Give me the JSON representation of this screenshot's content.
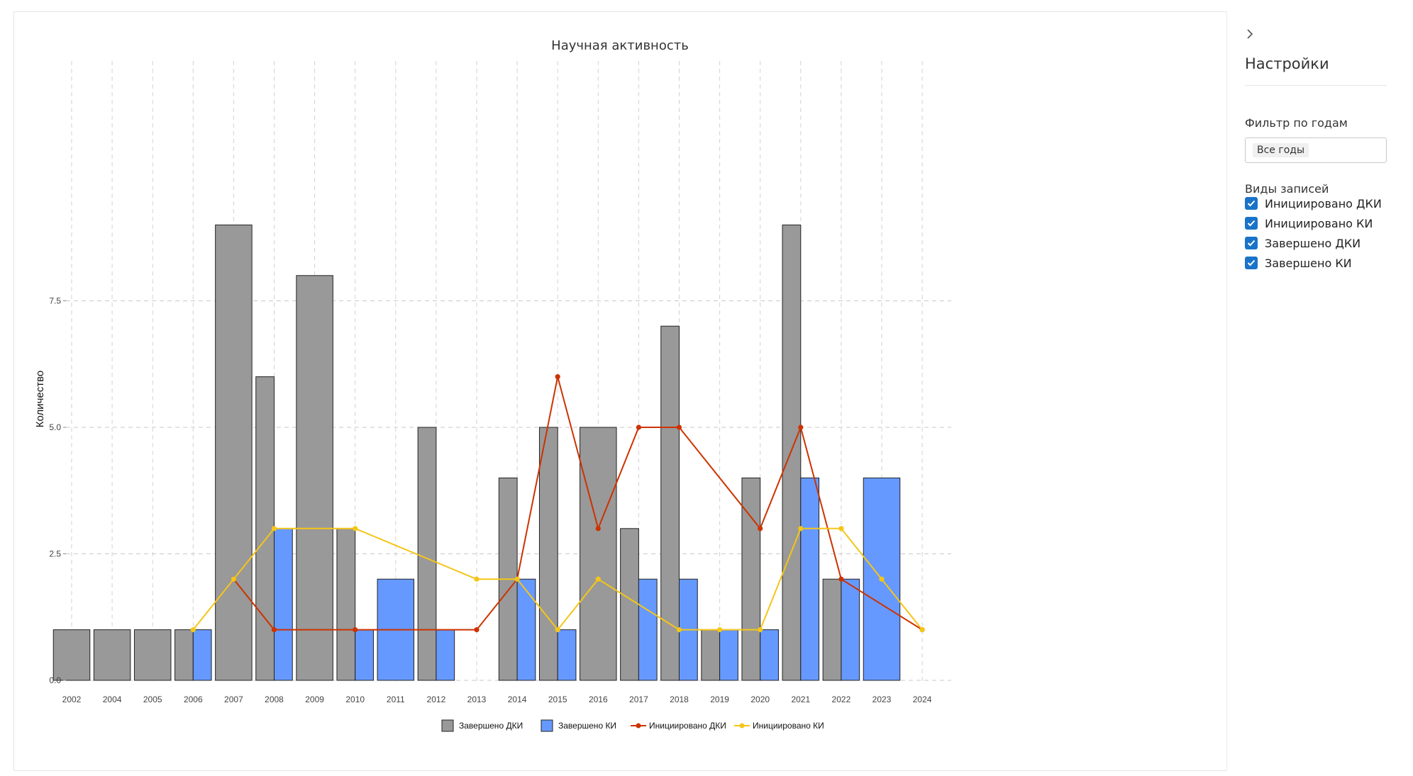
{
  "chart": {
    "title": "Научная активность",
    "ylabel": "Количество"
  },
  "chart_data": {
    "type": "bar",
    "title": "Научная активность",
    "xlabel": "",
    "ylabel": "Количество",
    "categories": [
      "2002",
      "2004",
      "2005",
      "2006",
      "2007",
      "2008",
      "2009",
      "2010",
      "2011",
      "2012",
      "2013",
      "2014",
      "2015",
      "2016",
      "2017",
      "2018",
      "2019",
      "2020",
      "2021",
      "2022",
      "2023",
      "2024"
    ],
    "ylim": [
      0,
      9
    ],
    "yticks": [
      "0.0",
      "2.5",
      "5.0",
      "7.5"
    ],
    "grid": true,
    "legend_position": "bottom",
    "series": [
      {
        "name": "Завершено ДКИ",
        "type": "bar",
        "color": "#999999",
        "values": [
          1,
          1,
          1,
          1,
          9,
          6,
          8,
          3,
          null,
          5,
          null,
          4,
          5,
          5,
          3,
          7,
          1,
          4,
          9,
          2,
          null,
          null
        ]
      },
      {
        "name": "Завершено КИ",
        "type": "bar",
        "color": "#6699ff",
        "values": [
          null,
          null,
          null,
          1,
          null,
          3,
          null,
          1,
          2,
          1,
          null,
          2,
          1,
          null,
          2,
          2,
          1,
          1,
          4,
          2,
          4,
          null
        ]
      },
      {
        "name": "Инициировано ДКИ",
        "type": "line",
        "color": "#cc3300",
        "values": [
          null,
          null,
          null,
          null,
          2,
          1,
          null,
          1,
          null,
          null,
          1,
          2,
          6,
          3,
          5,
          5,
          null,
          3,
          5,
          2,
          null,
          1
        ]
      },
      {
        "name": "Инициировано КИ",
        "type": "line",
        "color": "#f5c518",
        "values": [
          null,
          null,
          null,
          1,
          2,
          3,
          null,
          3,
          null,
          null,
          2,
          2,
          1,
          2,
          null,
          1,
          1,
          1,
          3,
          3,
          2,
          1
        ]
      }
    ]
  },
  "sidebar": {
    "collapse_icon": "chevron-right-icon",
    "title": "Настройки",
    "filter_label": "Фильтр по годам",
    "filter_value": "Все годы",
    "types_label": "Виды записей",
    "checkboxes": [
      {
        "label": "Инициировано ДКИ",
        "checked": true
      },
      {
        "label": "Инициировано КИ",
        "checked": true
      },
      {
        "label": "Завершено ДКИ",
        "checked": true
      },
      {
        "label": "Завершено КИ",
        "checked": true
      }
    ],
    "check_color": "#1a73c8"
  }
}
